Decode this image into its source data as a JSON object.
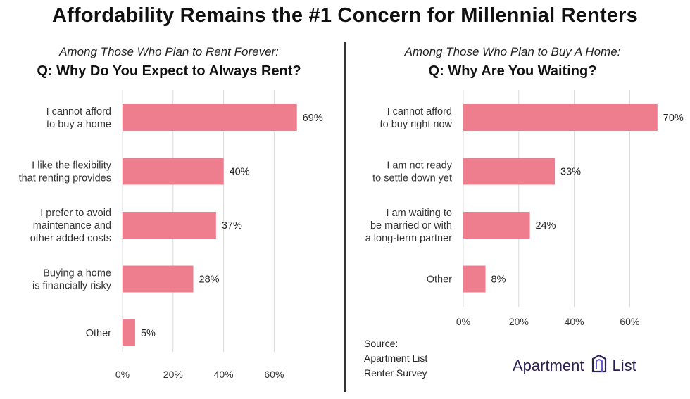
{
  "title": "Affordability Remains the #1 Concern for Millennial Renters",
  "left_panel": {
    "pretitle": "Among Those Who Plan to Rent Forever:",
    "question": "Q: Why Do You Expect to Always Rent?"
  },
  "right_panel": {
    "pretitle": "Among Those Who Plan to Buy A Home:",
    "question": "Q: Why Are You Waiting?"
  },
  "source": {
    "line1": "Source:",
    "line2": "Apartment List",
    "line3": "Renter Survey"
  },
  "brand": {
    "name_part1": "Apartment",
    "name_part2": "List"
  },
  "colors": {
    "bar": "#ee7e8e",
    "grid": "#d9d9d9",
    "brand": "#2b2050",
    "brand_accent": "#6a5acd"
  },
  "chart_data": [
    {
      "type": "bar",
      "orientation": "horizontal",
      "title": "Q: Why Do You Expect to Always Rent?",
      "categories": [
        [
          "I cannot afford",
          "to buy a home"
        ],
        [
          "I like the flexibility",
          "that renting provides"
        ],
        [
          "I prefer to avoid",
          "maintenance and",
          "other added costs"
        ],
        [
          "Buying a home",
          "is financially risky"
        ],
        [
          "Other"
        ]
      ],
      "values": [
        69,
        40,
        37,
        28,
        5
      ],
      "value_labels": [
        "69%",
        "40%",
        "37%",
        "28%",
        "5%"
      ],
      "xlim": [
        0,
        70
      ],
      "xticks": [
        0,
        20,
        40,
        60
      ],
      "xtick_labels": [
        "0%",
        "20%",
        "40%",
        "60%"
      ],
      "grid": true,
      "legend": "none"
    },
    {
      "type": "bar",
      "orientation": "horizontal",
      "title": "Q: Why Are You Waiting?",
      "categories": [
        [
          "I cannot afford",
          "to buy right now"
        ],
        [
          "I am not ready",
          "to settle down yet"
        ],
        [
          "I am waiting to",
          "be married or with",
          "a long-term partner"
        ],
        [
          "Other"
        ]
      ],
      "values": [
        70,
        33,
        24,
        8
      ],
      "value_labels": [
        "70%",
        "33%",
        "24%",
        "8%"
      ],
      "xlim": [
        0,
        70
      ],
      "xticks": [
        0,
        20,
        40,
        60
      ],
      "xtick_labels": [
        "0%",
        "20%",
        "40%",
        "60%"
      ],
      "grid": true,
      "legend": "none"
    }
  ]
}
